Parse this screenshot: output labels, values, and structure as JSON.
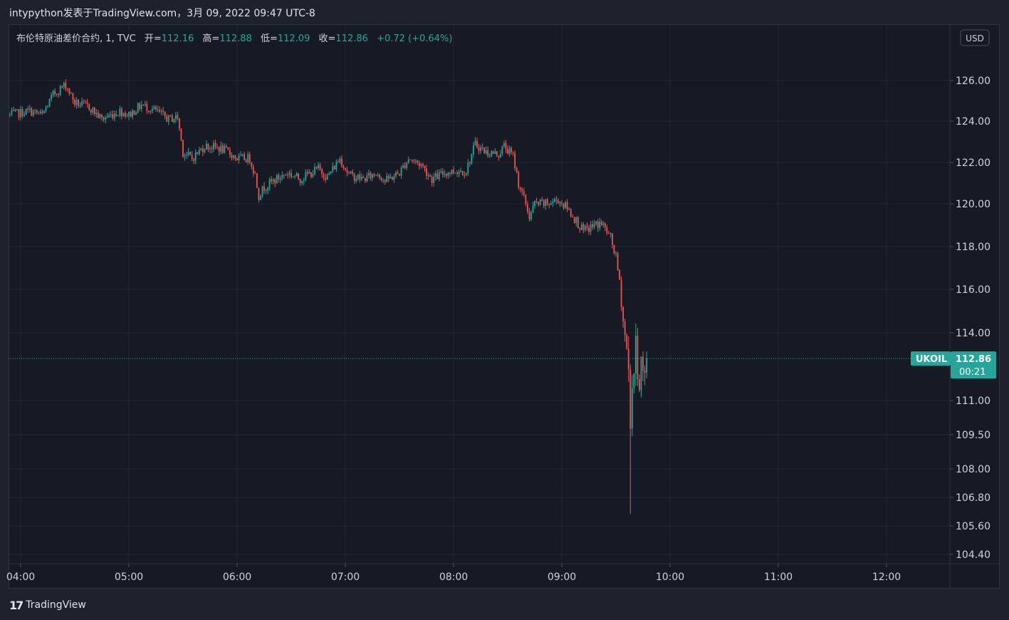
{
  "header": {
    "publisher_line": "intypython发表于TradingView.com，3月 09, 2022 09:47 UTC-8"
  },
  "legend": {
    "symbol_desc": "布伦特原油差价合约, 1, TVC",
    "open_label": "开=",
    "open_value": "112.16",
    "high_label": "高=",
    "high_value": "112.88",
    "low_label": "低=",
    "low_value": "112.09",
    "close_label": "收=",
    "close_value": "112.86",
    "change": "+0.72 (+0.64%)"
  },
  "currency_button": "USD",
  "price_tag": {
    "symbol": "UKOIL",
    "price": "112.86",
    "countdown": "00:21"
  },
  "footer": {
    "brand": "TradingView"
  },
  "colors": {
    "up": "#26a69a",
    "down": "#ef5350",
    "background": "#161a25",
    "grid": "#242733",
    "axis_text": "#d1d4dc"
  },
  "chart_data": {
    "type": "candlestick",
    "x_ticks": [
      "04:00",
      "05:00",
      "06:00",
      "07:00",
      "08:00",
      "09:00",
      "10:00",
      "11:00",
      "12:00"
    ],
    "y_ticks": [
      "126.00",
      "124.00",
      "122.00",
      "120.00",
      "118.00",
      "116.00",
      "114.00",
      "111.00",
      "109.50",
      "108.00",
      "106.80",
      "105.60",
      "104.40"
    ],
    "last_price": 112.86,
    "time_range": [
      "03:54",
      "12:25"
    ],
    "price_path": [
      [
        "03:54",
        124.3
      ],
      [
        "04:05",
        124.5
      ],
      [
        "04:12",
        124.3
      ],
      [
        "04:18",
        125.3
      ],
      [
        "04:22",
        125.6
      ],
      [
        "04:25",
        125.8
      ],
      [
        "04:30",
        124.9
      ],
      [
        "04:38",
        124.7
      ],
      [
        "04:45",
        124.1
      ],
      [
        "04:55",
        124.5
      ],
      [
        "05:00",
        124.3
      ],
      [
        "05:07",
        124.8
      ],
      [
        "05:15",
        124.5
      ],
      [
        "05:22",
        124.1
      ],
      [
        "05:27",
        124.2
      ],
      [
        "05:30",
        122.5
      ],
      [
        "05:35",
        122.2
      ],
      [
        "05:42",
        122.8
      ],
      [
        "05:50",
        122.7
      ],
      [
        "05:55",
        122.5
      ],
      [
        "06:00",
        122.2
      ],
      [
        "06:07",
        122.2
      ],
      [
        "06:10",
        121.4
      ],
      [
        "06:12",
        120.4
      ],
      [
        "06:15",
        120.8
      ],
      [
        "06:20",
        121.1
      ],
      [
        "06:28",
        121.5
      ],
      [
        "06:35",
        121.2
      ],
      [
        "06:45",
        121.7
      ],
      [
        "06:50",
        121.3
      ],
      [
        "06:57",
        122.2
      ],
      [
        "07:02",
        121.4
      ],
      [
        "07:10",
        121.2
      ],
      [
        "07:18",
        121.5
      ],
      [
        "07:22",
        121.1
      ],
      [
        "07:30",
        121.5
      ],
      [
        "07:35",
        122.2
      ],
      [
        "07:42",
        121.9
      ],
      [
        "07:48",
        121.2
      ],
      [
        "07:55",
        121.5
      ],
      [
        "08:02",
        121.6
      ],
      [
        "08:07",
        121.6
      ],
      [
        "08:12",
        122.9
      ],
      [
        "08:18",
        122.5
      ],
      [
        "08:25",
        122.4
      ],
      [
        "08:28",
        122.8
      ],
      [
        "08:33",
        122.3
      ],
      [
        "08:36",
        121.0
      ],
      [
        "08:40",
        120.0
      ],
      [
        "08:42",
        119.4
      ],
      [
        "08:45",
        120.0
      ],
      [
        "08:52",
        120.0
      ],
      [
        "08:58",
        120.2
      ],
      [
        "09:03",
        119.8
      ],
      [
        "09:08",
        119.2
      ],
      [
        "09:12",
        118.7
      ],
      [
        "09:18",
        119.0
      ],
      [
        "09:22",
        119.1
      ],
      [
        "09:27",
        118.4
      ],
      [
        "09:30",
        117.5
      ],
      [
        "09:32",
        116.3
      ],
      [
        "09:34",
        114.5
      ],
      [
        "09:36",
        113.2
      ],
      [
        "09:37",
        112.1
      ],
      [
        "09:38",
        110.5
      ],
      [
        "09:39",
        111.6
      ],
      [
        "09:40",
        112.5
      ],
      [
        "09:41",
        113.0
      ],
      [
        "09:42",
        112.8
      ],
      [
        "09:43",
        112.0
      ],
      [
        "09:44",
        112.6
      ],
      [
        "09:45",
        112.2
      ],
      [
        "09:46",
        111.8
      ],
      [
        "09:47",
        112.86
      ]
    ],
    "spikes": [
      [
        "09:38",
        106.1
      ],
      [
        "09:42",
        113.3
      ]
    ]
  }
}
